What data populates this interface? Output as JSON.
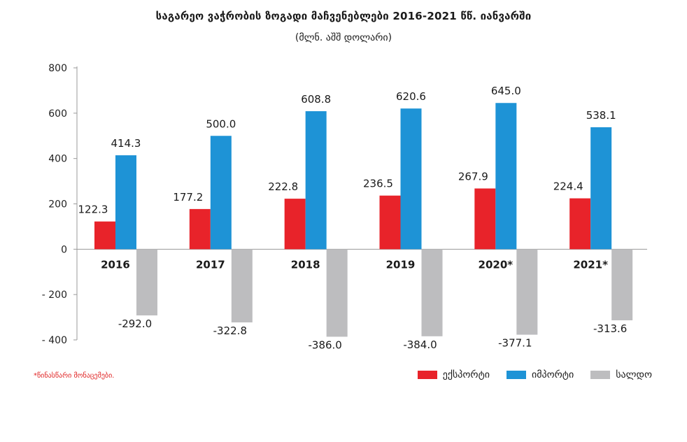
{
  "header": {
    "title": "საგარეო ვაჭრობის ზოგადი მაჩვენებლები 2016-2021 წწ. იანვარში",
    "subtitle": "(მლნ. აშშ დოლარი)"
  },
  "footnote": "*წინასწარი მონაცემები.",
  "colors": {
    "export": "#e8232a",
    "import": "#1e93d6",
    "balance": "#bdbdbf"
  },
  "chart_data": {
    "type": "bar",
    "categories": [
      "2016",
      "2017",
      "2018",
      "2019",
      "2020*",
      "2021*"
    ],
    "series": [
      {
        "name": "ექსპორტი",
        "values": [
          122.3,
          177.2,
          222.8,
          236.5,
          267.9,
          224.4
        ]
      },
      {
        "name": "იმპორტი",
        "values": [
          414.3,
          500.0,
          608.8,
          620.6,
          645.0,
          538.1
        ]
      },
      {
        "name": "სალდო",
        "values": [
          -292.0,
          -322.8,
          -386.0,
          -384.0,
          -377.1,
          -313.6
        ]
      }
    ],
    "value_labels": [
      [
        "122.3",
        "177.2",
        "222.8",
        "236.5",
        "267.9",
        "224.4"
      ],
      [
        "414.3",
        "500.0",
        "608.8",
        "620.6",
        "645.0",
        "538.1"
      ],
      [
        "-292.0",
        "-322.8",
        "-386.0",
        "-384.0",
        "-377.1",
        "-313.6"
      ]
    ],
    "yticks": [
      "800",
      "600",
      "400",
      "200",
      "0",
      "- 200",
      "- 400"
    ],
    "ylim": [
      -400,
      800
    ],
    "grid": false,
    "legend_position": "bottom-right"
  }
}
